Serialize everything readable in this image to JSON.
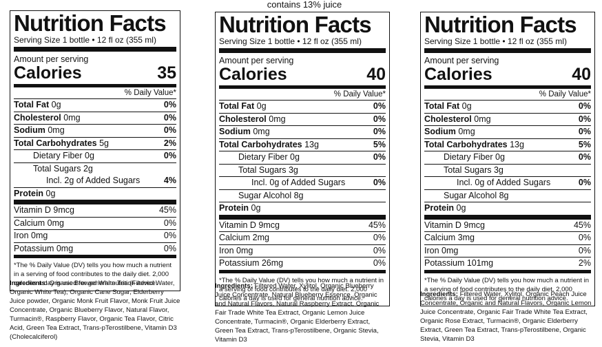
{
  "caption": "contains 13% juice",
  "common": {
    "title": "Nutrition Facts",
    "serving": "Serving Size 1 bottle • 12 fl oz (355 ml)",
    "amount": "Amount per serving",
    "calories_label": "Calories",
    "dv_header": "% Daily Value*",
    "footnote": "*The % Daily Value (DV) tells you how much a nutrient in a serving of food contributes to the daily diet. 2,000 calories a day is used for general nutrition advice.",
    "ingredients_label": "Ingredients:"
  },
  "labels": [
    {
      "calories": "35",
      "rows": [
        {
          "b": "Total Fat",
          "v": "0g",
          "dv": "0%"
        },
        {
          "b": "Cholesterol",
          "v": "0mg",
          "dv": "0%"
        },
        {
          "b": "Sodium",
          "v": "0mg",
          "dv": "0%"
        },
        {
          "b": "Total Carbohydrates",
          "v": "5g",
          "dv": "2%"
        },
        {
          "t": "Dietary Fiber 0g",
          "dv": "0%"
        },
        {
          "t": "Total Sugars 2g",
          "dv": ""
        },
        {
          "t": "Incl. 2g of Added Sugars",
          "dv": "4%"
        },
        {
          "b": "Protein",
          "v": "0g",
          "dv": ""
        },
        {
          "t": "Vitamin D 9mcg",
          "dv": "45%"
        },
        {
          "t": "Calcium 0mg",
          "dv": "0%"
        },
        {
          "t": "Iron 0mg",
          "dv": "0%"
        },
        {
          "t": "Potassium 0mg",
          "dv": "0%"
        }
      ],
      "ingredients": "Organic Brewed White Tea (Filtered Water, Organic White Tea), Organic Cane Sugar, Elderberry Juice powder, Organic Monk Fruit Flavor, Monk Fruit Juice Concentrate, Organic Blueberry Flavor, Natural Flavor, Turmacin®, Raspberry Flavor, Organic Tea Flavor, Citric Acid, Green Tea Extract, Trans-pTerostilbene, Vitamin D3 (Cholecalciferol)"
    },
    {
      "calories": "40",
      "rows": [
        {
          "b": "Total Fat",
          "v": "0g",
          "dv": "0%"
        },
        {
          "b": "Cholesterol",
          "v": "0mg",
          "dv": "0%"
        },
        {
          "b": "Sodium",
          "v": "0mg",
          "dv": "0%"
        },
        {
          "b": "Total Carbohydrates",
          "v": "13g",
          "dv": "5%"
        },
        {
          "t": "Dietary Fiber 0g",
          "dv": "0%"
        },
        {
          "t": "Total Sugars 3g",
          "dv": ""
        },
        {
          "t": "Incl. 0g of Added Sugars",
          "dv": "0%"
        },
        {
          "t": "Sugar Alcohol 8g",
          "dv": ""
        },
        {
          "b": "Protein",
          "v": "0g",
          "dv": ""
        },
        {
          "t": "Vitamin D 9mcg",
          "dv": "45%"
        },
        {
          "t": "Calcium 2mg",
          "dv": "0%"
        },
        {
          "t": "Iron 0mg",
          "dv": "0%"
        },
        {
          "t": "Potassium 26mg",
          "dv": "0%"
        }
      ],
      "ingredients": "Filtered Water, Xylitol, Organic Blueberry Juice Concentrate, Natural Blueberry Essence, Organic and Natural Flavors, Natural Raspberry Extract, Organic Fair Trade White Tea Extract, Organic Lemon Juice Concentrate, Turmacin®, Organic Elderberry Extract, Green Tea Extract, Trans-pTerostilbene, Organic Stevia, Vitamin D3"
    },
    {
      "calories": "40",
      "rows": [
        {
          "b": "Total Fat",
          "v": "0g",
          "dv": "0%"
        },
        {
          "b": "Cholesterol",
          "v": "0mg",
          "dv": "0%"
        },
        {
          "b": "Sodium",
          "v": "0mg",
          "dv": "0%"
        },
        {
          "b": "Total Carbohydrates",
          "v": "13g",
          "dv": "5%"
        },
        {
          "t": "Dietary Fiber 0g",
          "dv": "0%"
        },
        {
          "t": "Total Sugars 3g",
          "dv": ""
        },
        {
          "t": "Incl. 0g of Added Sugars",
          "dv": "0%"
        },
        {
          "t": "Sugar Alcohol 8g",
          "dv": ""
        },
        {
          "b": "Protein",
          "v": "0g",
          "dv": ""
        },
        {
          "t": "Vitamin D 9mcg",
          "dv": "45%"
        },
        {
          "t": "Calcium 3mg",
          "dv": "0%"
        },
        {
          "t": "Iron 0mg",
          "dv": "0%"
        },
        {
          "t": "Potassium 101mg",
          "dv": "2%"
        }
      ],
      "ingredients": "Filtered Water, Xylitol, Organic Peach Juice Concentrate, Organic and Natural Flavors, Organic Lemon Juice Concentrate, Organic Fair Trade White Tea Extract, Organic Rose Extract, Turmacin®, Organic Elderberry Extract, Green Tea Extract, Trans-pTerostilbene, Organic Stevia, Vitamin D3"
    }
  ]
}
